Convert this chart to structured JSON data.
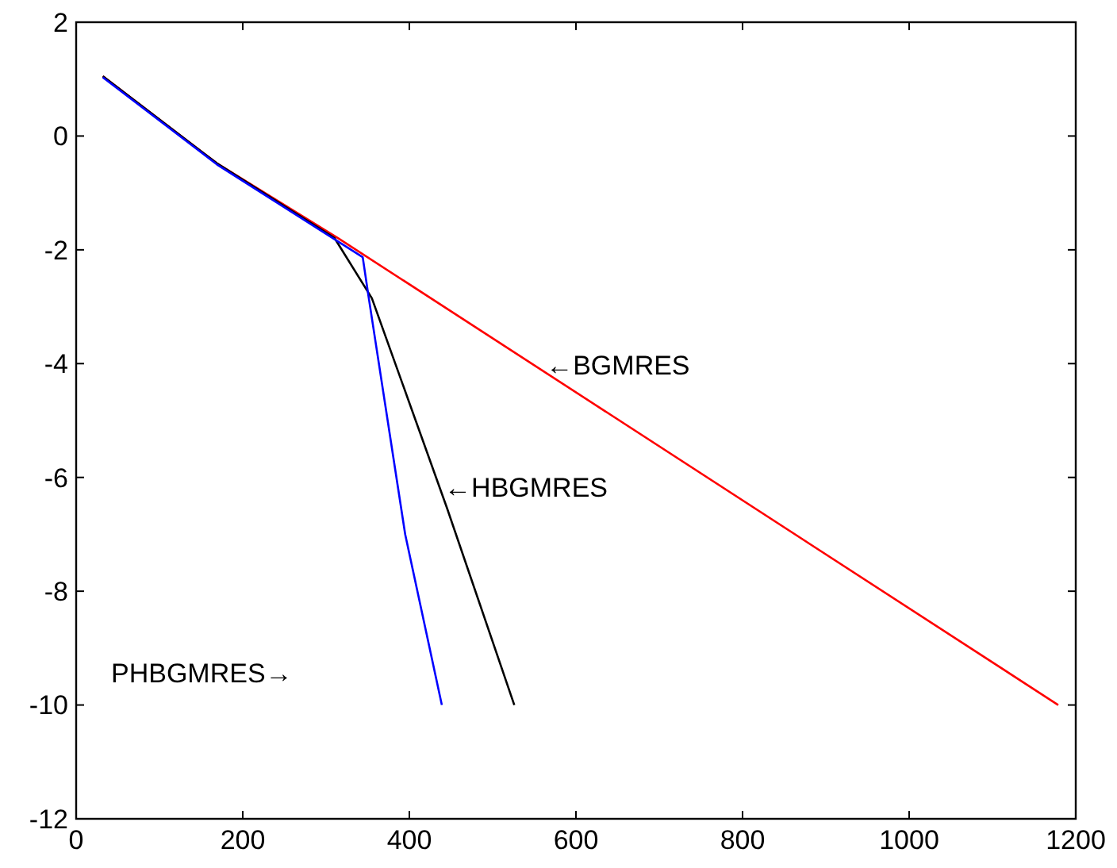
{
  "chart_data": {
    "type": "line",
    "xlim": [
      0,
      1200
    ],
    "ylim": [
      -12,
      2
    ],
    "xticks": [
      0,
      200,
      400,
      600,
      800,
      1000,
      1200
    ],
    "yticks": [
      -12,
      -10,
      -8,
      -6,
      -4,
      -2,
      0,
      2
    ],
    "grid": false,
    "marker": "none",
    "line_style": "solid",
    "series": [
      {
        "color": "#ff0000",
        "x": [
          32,
          169,
          314,
          1179
        ],
        "values": [
          1.05,
          -0.48,
          -1.79,
          -10
        ]
      },
      {
        "color": "#000000",
        "x": [
          32,
          169,
          310,
          355,
          445,
          526
        ],
        "values": [
          1.05,
          -0.48,
          -1.79,
          -2.85,
          -6.53,
          -10
        ]
      },
      {
        "color": "#0000ff",
        "x": [
          32,
          169,
          344,
          351,
          395,
          439
        ],
        "values": [
          1.03,
          -0.5,
          -2.13,
          -2.82,
          -7.0,
          -10
        ]
      }
    ],
    "annotations": [
      {
        "text": "←BGMRES",
        "x": 564,
        "y": -4.02
      },
      {
        "text": "←HBGMRES",
        "x": 442,
        "y": -6.17
      },
      "PHBGMRES→"
    ]
  }
}
